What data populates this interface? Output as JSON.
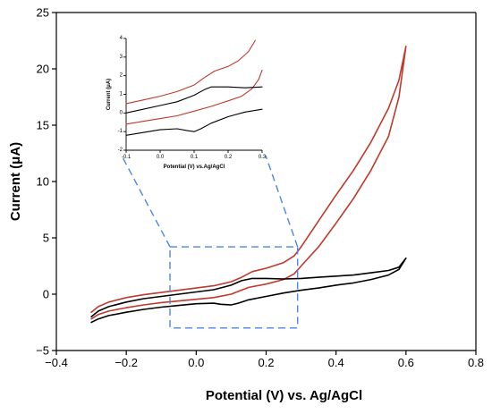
{
  "chart_data": [
    {
      "type": "line",
      "panel": "main",
      "xlabel": "Potential (V) vs. Ag/AgCl",
      "ylabel": "Current (μA)",
      "xlim": [
        -0.4,
        0.8
      ],
      "ylim": [
        -5,
        25
      ],
      "x_ticks": [
        "−0.4",
        "−0.2",
        "0.0",
        "0.2",
        "0.4",
        "0.6",
        "0.8"
      ],
      "y_ticks": [
        "−5",
        "0",
        "5",
        "10",
        "15",
        "20",
        "25"
      ],
      "x_tick_values": [
        -0.4,
        -0.2,
        0.0,
        0.2,
        0.4,
        0.6,
        0.8
      ],
      "y_tick_values": [
        -5,
        0,
        5,
        10,
        15,
        20,
        25
      ],
      "grid": false,
      "series": [
        {
          "color": "#c0392b",
          "points": [
            [
              -0.3,
              -1.6
            ],
            [
              -0.28,
              -1.1
            ],
            [
              -0.25,
              -0.7
            ],
            [
              -0.2,
              -0.3
            ],
            [
              -0.15,
              -0.05
            ],
            [
              -0.1,
              0.15
            ],
            [
              -0.05,
              0.35
            ],
            [
              0.0,
              0.55
            ],
            [
              0.05,
              0.75
            ],
            [
              0.1,
              1.1
            ],
            [
              0.13,
              1.5
            ],
            [
              0.16,
              2.0
            ],
            [
              0.2,
              2.3
            ],
            [
              0.25,
              2.8
            ],
            [
              0.28,
              3.4
            ],
            [
              0.3,
              4.2
            ],
            [
              0.35,
              6.5
            ],
            [
              0.4,
              8.8
            ],
            [
              0.45,
              11.0
            ],
            [
              0.5,
              13.5
            ],
            [
              0.55,
              16.5
            ],
            [
              0.58,
              19.0
            ],
            [
              0.6,
              22.0
            ],
            [
              0.58,
              17.5
            ],
            [
              0.55,
              14.0
            ],
            [
              0.5,
              11.0
            ],
            [
              0.45,
              8.5
            ],
            [
              0.4,
              6.3
            ],
            [
              0.35,
              4.2
            ],
            [
              0.3,
              2.5
            ],
            [
              0.28,
              1.8
            ],
            [
              0.25,
              1.3
            ],
            [
              0.2,
              0.9
            ],
            [
              0.15,
              0.6
            ],
            [
              0.1,
              0.0
            ],
            [
              0.05,
              -0.3
            ],
            [
              0.0,
              -0.45
            ],
            [
              -0.05,
              -0.6
            ],
            [
              -0.1,
              -0.75
            ],
            [
              -0.15,
              -0.95
            ],
            [
              -0.2,
              -1.2
            ],
            [
              -0.25,
              -1.5
            ],
            [
              -0.28,
              -1.8
            ],
            [
              -0.3,
              -2.2
            ]
          ]
        },
        {
          "color": "#000000",
          "points": [
            [
              -0.3,
              -2.0
            ],
            [
              -0.28,
              -1.5
            ],
            [
              -0.25,
              -1.1
            ],
            [
              -0.2,
              -0.7
            ],
            [
              -0.15,
              -0.4
            ],
            [
              -0.1,
              -0.2
            ],
            [
              -0.05,
              0.0
            ],
            [
              0.0,
              0.2
            ],
            [
              0.05,
              0.4
            ],
            [
              0.1,
              0.8
            ],
            [
              0.13,
              1.2
            ],
            [
              0.16,
              1.4
            ],
            [
              0.2,
              1.4
            ],
            [
              0.25,
              1.35
            ],
            [
              0.3,
              1.4
            ],
            [
              0.35,
              1.5
            ],
            [
              0.4,
              1.6
            ],
            [
              0.45,
              1.7
            ],
            [
              0.5,
              1.9
            ],
            [
              0.55,
              2.1
            ],
            [
              0.58,
              2.4
            ],
            [
              0.6,
              3.2
            ],
            [
              0.58,
              2.2
            ],
            [
              0.55,
              1.7
            ],
            [
              0.5,
              1.3
            ],
            [
              0.45,
              1.0
            ],
            [
              0.4,
              0.8
            ],
            [
              0.35,
              0.55
            ],
            [
              0.3,
              0.35
            ],
            [
              0.25,
              0.1
            ],
            [
              0.2,
              -0.2
            ],
            [
              0.15,
              -0.5
            ],
            [
              0.12,
              -0.8
            ],
            [
              0.1,
              -0.95
            ],
            [
              0.07,
              -0.9
            ],
            [
              0.05,
              -0.8
            ],
            [
              0.0,
              -0.85
            ],
            [
              -0.05,
              -1.0
            ],
            [
              -0.1,
              -1.15
            ],
            [
              -0.15,
              -1.35
            ],
            [
              -0.2,
              -1.6
            ],
            [
              -0.25,
              -1.9
            ],
            [
              -0.28,
              -2.2
            ],
            [
              -0.3,
              -2.5
            ]
          ]
        }
      ],
      "zoom_box": {
        "x": [
          -0.075,
          0.29
        ],
        "y": [
          -3,
          4.2
        ],
        "color": "#4a86e8"
      }
    },
    {
      "type": "line",
      "panel": "inset",
      "xlabel": "Potential (V) vs.Ag/AgCl",
      "ylabel": "Current (μA)",
      "xlim": [
        -0.1,
        0.3
      ],
      "ylim": [
        -2,
        4
      ],
      "x_ticks": [
        "-0.1",
        "0.0",
        "0.1",
        "0.2",
        "0.3"
      ],
      "y_ticks": [
        "-2",
        "-1",
        "0",
        "1",
        "2",
        "3",
        "4"
      ],
      "x_tick_values": [
        -0.1,
        0.0,
        0.1,
        0.2,
        0.3
      ],
      "y_tick_values": [
        -2,
        -1,
        0,
        1,
        2,
        3,
        4
      ],
      "grid": false,
      "series": [
        {
          "color": "#c0392b",
          "points": [
            [
              -0.1,
              0.5
            ],
            [
              -0.05,
              0.7
            ],
            [
              0.0,
              0.9
            ],
            [
              0.05,
              1.15
            ],
            [
              0.1,
              1.5
            ],
            [
              0.13,
              1.9
            ],
            [
              0.16,
              2.25
            ],
            [
              0.2,
              2.5
            ],
            [
              0.23,
              2.8
            ],
            [
              0.26,
              3.3
            ],
            [
              0.28,
              3.9
            ]
          ]
        },
        {
          "color": "#c0392b",
          "points": [
            [
              -0.1,
              -0.6
            ],
            [
              -0.05,
              -0.45
            ],
            [
              0.0,
              -0.3
            ],
            [
              0.05,
              -0.15
            ],
            [
              0.1,
              0.1
            ],
            [
              0.15,
              0.35
            ],
            [
              0.2,
              0.65
            ],
            [
              0.24,
              0.9
            ],
            [
              0.27,
              1.3
            ],
            [
              0.29,
              1.8
            ],
            [
              0.3,
              2.3
            ]
          ]
        },
        {
          "color": "#000000",
          "points": [
            [
              -0.1,
              0.0
            ],
            [
              -0.05,
              0.2
            ],
            [
              0.0,
              0.4
            ],
            [
              0.05,
              0.6
            ],
            [
              0.1,
              0.95
            ],
            [
              0.13,
              1.25
            ],
            [
              0.15,
              1.4
            ],
            [
              0.2,
              1.4
            ],
            [
              0.25,
              1.35
            ],
            [
              0.3,
              1.4
            ]
          ]
        },
        {
          "color": "#000000",
          "points": [
            [
              -0.1,
              -1.2
            ],
            [
              -0.05,
              -1.05
            ],
            [
              0.0,
              -0.9
            ],
            [
              0.05,
              -0.85
            ],
            [
              0.08,
              -0.95
            ],
            [
              0.1,
              -1.0
            ],
            [
              0.12,
              -0.85
            ],
            [
              0.15,
              -0.55
            ],
            [
              0.2,
              -0.2
            ],
            [
              0.25,
              0.05
            ],
            [
              0.3,
              0.2
            ]
          ]
        }
      ]
    }
  ]
}
